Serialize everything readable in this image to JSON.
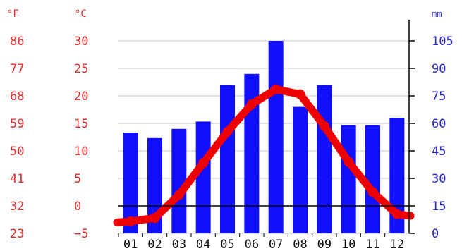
{
  "chart_data": {
    "type": "bar+line",
    "categories": [
      "01",
      "02",
      "03",
      "04",
      "05",
      "06",
      "07",
      "08",
      "09",
      "10",
      "11",
      "12"
    ],
    "precipitation_mm": [
      55,
      52,
      57,
      61,
      81,
      87,
      105,
      69,
      81,
      59,
      59,
      63
    ],
    "temperature_c": [
      -2.8,
      -2.2,
      2.0,
      7.8,
      13.5,
      18.5,
      21.2,
      20.3,
      14.5,
      8.0,
      2.5,
      -1.5
    ],
    "left_unit_f": "°F",
    "left_unit_c": "°C",
    "right_unit": "mm",
    "ticks_f": [
      "86",
      "77",
      "68",
      "59",
      "50",
      "41",
      "32",
      "23"
    ],
    "ticks_c": [
      "30",
      "25",
      "20",
      "15",
      "10",
      "5",
      "0",
      "−5"
    ],
    "ticks_mm": [
      "105",
      "90",
      "75",
      "60",
      "45",
      "30",
      "15",
      "0"
    ],
    "ylim_c": [
      -5,
      30
    ],
    "ylim_mm": [
      0,
      105
    ],
    "grid": true,
    "colors": {
      "bars": "#1010ff",
      "line": "#ee0000",
      "temp_labels": "#e03030",
      "precip_labels": "#2a2ad0"
    }
  }
}
